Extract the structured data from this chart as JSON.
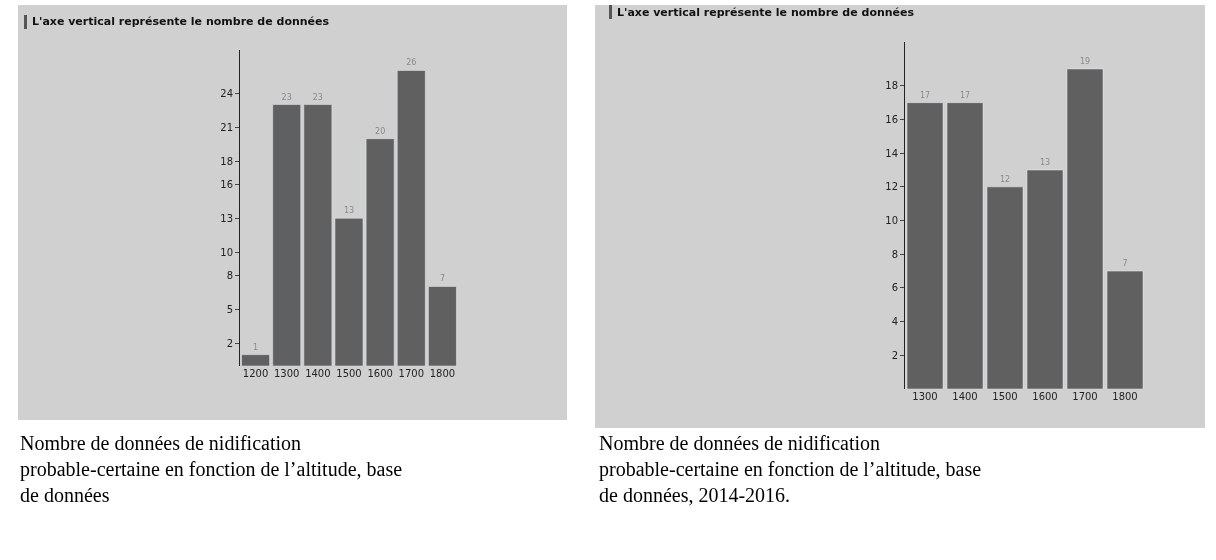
{
  "chart_data": [
    {
      "type": "bar",
      "title": "L'axe vertical représente le nombre de données",
      "categories": [
        "1200",
        "1300",
        "1400",
        "1500",
        "1600",
        "1700",
        "1800"
      ],
      "values": [
        1,
        23,
        23,
        13,
        20,
        26,
        7
      ],
      "color": "#606060",
      "data_labels": true,
      "ylim": [
        0,
        27.8
      ],
      "yticks": [
        2,
        5,
        8,
        10,
        13,
        16,
        18,
        21,
        24
      ],
      "annotations": [
        "Nombre de données de nidification probable-certaine en fonction de l’altitude, base de données"
      ]
    },
    {
      "type": "bar",
      "title": "L'axe vertical représente le nombre de données",
      "categories": [
        "1300",
        "1400",
        "1500",
        "1600",
        "1700",
        "1800"
      ],
      "values": [
        17,
        17,
        12,
        13,
        19,
        7
      ],
      "color": "#606060",
      "data_labels": true,
      "ylim": [
        0,
        20.6
      ],
      "yticks": [
        2,
        4,
        6,
        8,
        10,
        12,
        14,
        16,
        18
      ],
      "annotations": [
        "Nombre de données de nidification probable-certaine en fonction de l’altitude, base de données, 2014-2016."
      ]
    }
  ]
}
